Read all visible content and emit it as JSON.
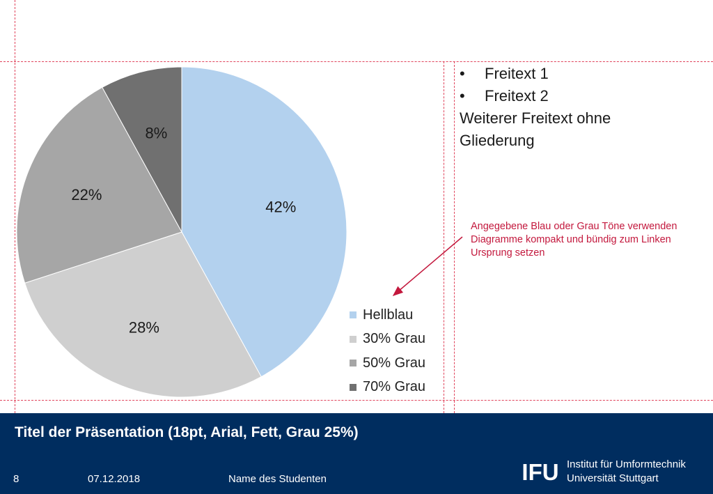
{
  "chart_data": {
    "type": "pie",
    "categories": [
      "Hellblau",
      "30% Grau",
      "50% Grau",
      "70% Grau"
    ],
    "values": [
      42,
      28,
      22,
      8
    ],
    "labels": [
      "42%",
      "28%",
      "22%",
      "8%"
    ],
    "colors": [
      "#b3d1ee",
      "#cfcfcf",
      "#a6a6a6",
      "#707070"
    ],
    "legend": "bottom-right"
  },
  "text_box": {
    "bullets": [
      "Freitext 1",
      "Freitext 2"
    ],
    "bullet_symbol": "•",
    "paragraph_lines": [
      "Weiterer Freitext ohne",
      "Gliederung"
    ]
  },
  "annotation": {
    "lines": [
      "Angegebene Blau oder Grau Töne verwenden",
      "Diagramme kompakt und bündig zum Linken",
      "Ursprung setzen"
    ],
    "color": "#c3183d"
  },
  "footer": {
    "title": "Titel der Präsentation (18pt, Arial, Fett, Grau 25%)",
    "page_number": "8",
    "date": "07.12.2018",
    "author": "Name des Studenten",
    "logo_text": "IFU",
    "institute_line1": "Institut für Umformtechnik",
    "institute_line2": "Universität Stuttgart",
    "background": "#002d5f"
  }
}
